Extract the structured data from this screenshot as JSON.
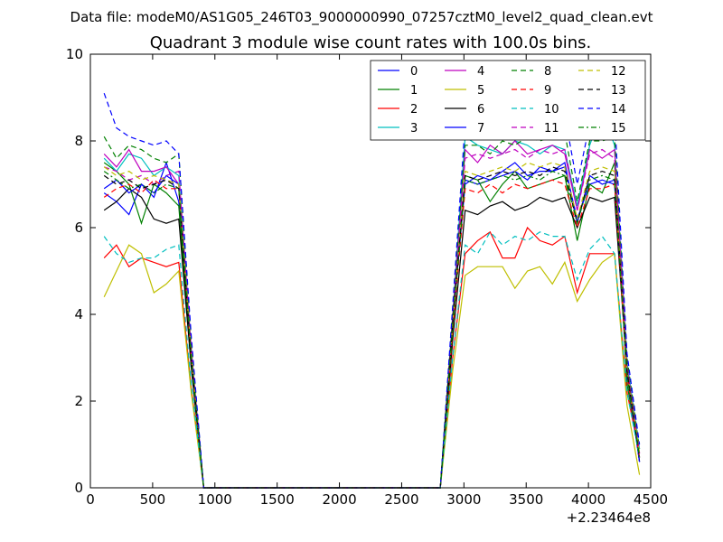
{
  "chart_data": {
    "type": "line",
    "suptitle": "Data file: modeM0/AS1G05_246T03_9000000990_07257cztM0_level2_quad_clean.evt",
    "title": "Quadrant 3 module wise count rates with 100.0s bins.",
    "xlabel": "",
    "ylabel": "",
    "x_offset_label": "+2.23464e8",
    "xlim": [
      0,
      4500
    ],
    "ylim": [
      0,
      10
    ],
    "xticks": [
      0,
      500,
      1000,
      1500,
      2000,
      2500,
      3000,
      3500,
      4000,
      4500
    ],
    "yticks": [
      0,
      2,
      4,
      6,
      8,
      10
    ],
    "legend_position": "top-right",
    "legend_columns": 4,
    "x": [
      110,
      210,
      310,
      410,
      510,
      610,
      710,
      810,
      910,
      1010,
      1110,
      1210,
      1310,
      1410,
      1510,
      1610,
      1710,
      1810,
      1910,
      2010,
      2110,
      2210,
      2310,
      2410,
      2510,
      2610,
      2710,
      2810,
      2910,
      3010,
      3110,
      3210,
      3310,
      3410,
      3510,
      3610,
      3710,
      3810,
      3910,
      4010,
      4110,
      4210,
      4310,
      4410
    ],
    "series": [
      {
        "name": "0",
        "color": "#0000ff",
        "dash": "solid",
        "values": [
          6.8,
          6.6,
          6.3,
          7.0,
          6.7,
          7.5,
          6.6,
          3.0,
          0,
          0,
          0,
          0,
          0,
          0,
          0,
          0,
          0,
          0,
          0,
          0,
          0,
          0,
          0,
          0,
          0,
          0,
          0,
          0,
          3.8,
          7.0,
          7.2,
          7.1,
          7.3,
          7.5,
          7.2,
          7.3,
          7.3,
          7.4,
          6.2,
          7.0,
          7.1,
          7.0,
          2.8,
          0.6
        ]
      },
      {
        "name": "1",
        "color": "#008000",
        "dash": "solid",
        "values": [
          7.5,
          7.3,
          7.0,
          6.1,
          7.0,
          6.8,
          6.5,
          2.8,
          0,
          0,
          0,
          0,
          0,
          0,
          0,
          0,
          0,
          0,
          0,
          0,
          0,
          0,
          0,
          0,
          0,
          0,
          0,
          0,
          3.7,
          7.2,
          7.1,
          6.6,
          7.0,
          7.3,
          6.9,
          7.0,
          7.1,
          7.2,
          5.7,
          7.0,
          6.8,
          7.5,
          2.4,
          0.7
        ]
      },
      {
        "name": "2",
        "color": "#ff0000",
        "dash": "solid",
        "values": [
          5.3,
          5.6,
          5.1,
          5.3,
          5.2,
          5.1,
          5.2,
          2.3,
          0,
          0,
          0,
          0,
          0,
          0,
          0,
          0,
          0,
          0,
          0,
          0,
          0,
          0,
          0,
          0,
          0,
          0,
          0,
          0,
          3.0,
          5.4,
          5.7,
          5.9,
          5.3,
          5.3,
          6.0,
          5.7,
          5.6,
          5.8,
          4.5,
          5.4,
          5.4,
          5.4,
          2.2,
          0.8
        ]
      },
      {
        "name": "3",
        "color": "#00bfbf",
        "dash": "solid",
        "values": [
          7.6,
          7.3,
          7.7,
          7.6,
          7.2,
          7.4,
          7.2,
          3.2,
          0,
          0,
          0,
          0,
          0,
          0,
          0,
          0,
          0,
          0,
          0,
          0,
          0,
          0,
          0,
          0,
          0,
          0,
          0,
          0,
          4.0,
          8.1,
          7.9,
          7.8,
          7.7,
          8.0,
          7.9,
          7.7,
          7.9,
          7.8,
          6.5,
          7.9,
          8.7,
          7.9,
          2.9,
          0.9
        ]
      },
      {
        "name": "4",
        "color": "#bf00bf",
        "dash": "solid",
        "values": [
          7.7,
          7.4,
          7.8,
          7.3,
          7.3,
          7.4,
          7.0,
          3.1,
          0,
          0,
          0,
          0,
          0,
          0,
          0,
          0,
          0,
          0,
          0,
          0,
          0,
          0,
          0,
          0,
          0,
          0,
          0,
          0,
          3.9,
          7.8,
          7.5,
          7.9,
          7.7,
          8.0,
          7.7,
          7.8,
          7.9,
          7.7,
          6.4,
          7.8,
          7.6,
          7.8,
          2.8,
          0.8
        ]
      },
      {
        "name": "5",
        "color": "#bfbf00",
        "dash": "solid",
        "values": [
          4.4,
          5.0,
          5.6,
          5.4,
          4.5,
          4.7,
          5.0,
          2.2,
          0,
          0,
          0,
          0,
          0,
          0,
          0,
          0,
          0,
          0,
          0,
          0,
          0,
          0,
          0,
          0,
          0,
          0,
          0,
          0,
          2.7,
          4.9,
          5.1,
          5.1,
          5.1,
          4.6,
          5.0,
          5.1,
          4.7,
          5.2,
          4.3,
          4.8,
          5.2,
          5.4,
          1.9,
          0.3
        ]
      },
      {
        "name": "6",
        "color": "#000000",
        "dash": "solid",
        "values": [
          6.4,
          6.6,
          6.9,
          6.7,
          6.2,
          6.1,
          6.2,
          2.8,
          0,
          0,
          0,
          0,
          0,
          0,
          0,
          0,
          0,
          0,
          0,
          0,
          0,
          0,
          0,
          0,
          0,
          0,
          0,
          0,
          3.4,
          6.4,
          6.3,
          6.5,
          6.6,
          6.4,
          6.5,
          6.7,
          6.6,
          6.7,
          6.0,
          6.7,
          6.6,
          6.7,
          2.7,
          0.6
        ]
      },
      {
        "name": "7",
        "color": "#0000ff",
        "dash": "solid",
        "values": [
          6.9,
          7.1,
          6.8,
          7.0,
          6.8,
          7.2,
          7.0,
          3.0,
          0,
          0,
          0,
          0,
          0,
          0,
          0,
          0,
          0,
          0,
          0,
          0,
          0,
          0,
          0,
          0,
          0,
          0,
          0,
          0,
          3.8,
          7.1,
          7.0,
          7.1,
          7.2,
          7.3,
          7.1,
          7.4,
          7.3,
          7.5,
          6.1,
          7.2,
          7.0,
          7.1,
          2.6,
          0.6
        ]
      },
      {
        "name": "8",
        "color": "#008000",
        "dash": "dashed",
        "values": [
          8.1,
          7.6,
          7.9,
          7.8,
          7.6,
          7.5,
          7.7,
          3.4,
          0,
          0,
          0,
          0,
          0,
          0,
          0,
          0,
          0,
          0,
          0,
          0,
          0,
          0,
          0,
          0,
          0,
          0,
          0,
          0,
          4.1,
          7.9,
          7.9,
          7.7,
          8.0,
          7.9,
          8.1,
          8.0,
          8.1,
          8.2,
          6.6,
          8.0,
          8.0,
          8.1,
          3.0,
          0.9
        ]
      },
      {
        "name": "9",
        "color": "#ff0000",
        "dash": "dashed",
        "values": [
          6.7,
          6.9,
          7.0,
          6.8,
          7.1,
          6.9,
          6.9,
          3.0,
          0,
          0,
          0,
          0,
          0,
          0,
          0,
          0,
          0,
          0,
          0,
          0,
          0,
          0,
          0,
          0,
          0,
          0,
          0,
          0,
          3.6,
          6.9,
          6.8,
          7.0,
          6.8,
          7.0,
          6.9,
          7.0,
          7.1,
          7.0,
          6.0,
          6.9,
          6.9,
          7.0,
          2.6,
          0.7
        ]
      },
      {
        "name": "10",
        "color": "#00bfbf",
        "dash": "dashed",
        "values": [
          5.8,
          5.4,
          5.2,
          5.3,
          5.3,
          5.5,
          5.6,
          2.4,
          0,
          0,
          0,
          0,
          0,
          0,
          0,
          0,
          0,
          0,
          0,
          0,
          0,
          0,
          0,
          0,
          0,
          0,
          0,
          0,
          3.0,
          5.6,
          5.4,
          5.9,
          5.6,
          5.8,
          5.7,
          5.9,
          5.8,
          5.8,
          4.8,
          5.5,
          5.8,
          5.4,
          2.2,
          0.7
        ]
      },
      {
        "name": "11",
        "color": "#bf00bf",
        "dash": "dashed",
        "values": [
          7.4,
          7.3,
          7.1,
          7.2,
          7.0,
          7.2,
          7.3,
          3.2,
          0,
          0,
          0,
          0,
          0,
          0,
          0,
          0,
          0,
          0,
          0,
          0,
          0,
          0,
          0,
          0,
          0,
          0,
          0,
          0,
          3.9,
          7.6,
          7.7,
          7.6,
          7.7,
          7.8,
          7.6,
          7.8,
          7.7,
          7.8,
          6.4,
          7.7,
          7.8,
          7.6,
          2.8,
          0.8
        ]
      },
      {
        "name": "12",
        "color": "#bfbf00",
        "dash": "dashed",
        "values": [
          7.4,
          7.2,
          7.3,
          7.1,
          7.2,
          7.1,
          7.0,
          3.1,
          0,
          0,
          0,
          0,
          0,
          0,
          0,
          0,
          0,
          0,
          0,
          0,
          0,
          0,
          0,
          0,
          0,
          0,
          0,
          0,
          3.8,
          7.3,
          7.2,
          7.3,
          7.4,
          7.3,
          7.5,
          7.4,
          7.5,
          7.4,
          6.2,
          7.3,
          7.4,
          7.3,
          2.7,
          0.8
        ]
      },
      {
        "name": "13",
        "color": "#000000",
        "dash": "dashed",
        "values": [
          7.2,
          7.0,
          7.1,
          6.9,
          7.0,
          7.1,
          6.9,
          3.0,
          0,
          0,
          0,
          0,
          0,
          0,
          0,
          0,
          0,
          0,
          0,
          0,
          0,
          0,
          0,
          0,
          0,
          0,
          0,
          0,
          3.8,
          7.2,
          7.1,
          7.2,
          7.3,
          7.2,
          7.3,
          7.2,
          7.4,
          7.3,
          6.1,
          7.2,
          7.3,
          7.2,
          2.7,
          0.7
        ]
      },
      {
        "name": "14",
        "color": "#0000ff",
        "dash": "dashed",
        "values": [
          9.1,
          8.3,
          8.1,
          8.0,
          7.9,
          8.0,
          7.7,
          3.5,
          0,
          0,
          0,
          0,
          0,
          0,
          0,
          0,
          0,
          0,
          0,
          0,
          0,
          0,
          0,
          0,
          0,
          0,
          0,
          0,
          4.2,
          8.4,
          8.6,
          8.6,
          8.5,
          8.7,
          8.6,
          8.8,
          8.7,
          8.6,
          7.0,
          8.4,
          8.4,
          8.6,
          3.1,
          1.0
        ]
      },
      {
        "name": "15",
        "color": "#008000",
        "dash": "dashdot",
        "values": [
          7.3,
          7.1,
          6.9,
          7.0,
          6.8,
          7.0,
          6.9,
          3.0,
          0,
          0,
          0,
          0,
          0,
          0,
          0,
          0,
          0,
          0,
          0,
          0,
          0,
          0,
          0,
          0,
          0,
          0,
          0,
          0,
          3.7,
          7.1,
          7.0,
          7.1,
          7.2,
          7.1,
          7.2,
          7.1,
          7.3,
          7.2,
          6.1,
          7.1,
          7.2,
          7.1,
          2.6,
          0.7
        ]
      }
    ]
  }
}
